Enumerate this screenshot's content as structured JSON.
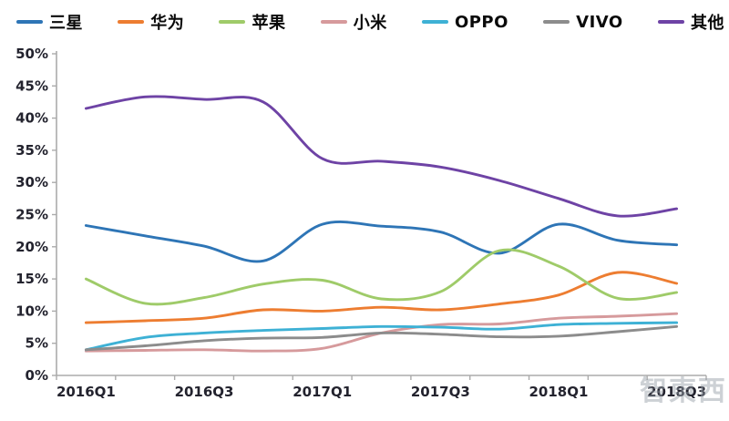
{
  "chart_data": {
    "type": "line",
    "title": "",
    "xlabel": "",
    "ylabel": "",
    "ylim": [
      0,
      50
    ],
    "ytick_step": 5,
    "yticks": [
      "0%",
      "5%",
      "10%",
      "15%",
      "20%",
      "25%",
      "30%",
      "35%",
      "40%",
      "45%",
      "50%"
    ],
    "categories": [
      "2016Q1",
      "2016Q2",
      "2016Q3",
      "2016Q4",
      "2017Q1",
      "2017Q2",
      "2017Q3",
      "2017Q4",
      "2018Q1",
      "2018Q2",
      "2018Q3"
    ],
    "xtick_labels_shown": [
      "2016Q1",
      "2016Q3",
      "2017Q1",
      "2017Q3",
      "2018Q1",
      "2018Q3"
    ],
    "xtick_label_every": 2,
    "grid": false,
    "legend_position": "top",
    "axis_color": "#ababab",
    "label_color": "#23232e",
    "series": [
      {
        "name": "samsung",
        "label": "三星",
        "color": "#2E75B6",
        "values": [
          23.3,
          21.7,
          20.1,
          17.8,
          23.5,
          23.2,
          22.3,
          19.0,
          23.5,
          21.0,
          20.3
        ]
      },
      {
        "name": "huawei",
        "label": "华为",
        "color": "#ED7D31",
        "values": [
          8.2,
          8.5,
          8.9,
          10.2,
          10.0,
          10.6,
          10.2,
          11.1,
          12.5,
          16.0,
          14.3
        ]
      },
      {
        "name": "apple",
        "label": "苹果",
        "color": "#9FCB69",
        "values": [
          15.0,
          11.2,
          12.1,
          14.2,
          14.8,
          11.9,
          13.0,
          19.4,
          17.0,
          12.0,
          12.9
        ]
      },
      {
        "name": "xiaomi",
        "label": "小米",
        "color": "#D69A9C",
        "values": [
          3.8,
          3.9,
          4.0,
          3.8,
          4.2,
          6.6,
          7.9,
          8.0,
          8.9,
          9.2,
          9.6
        ]
      },
      {
        "name": "oppo",
        "label": "OPPO",
        "color": "#3EB1D5",
        "values": [
          4.0,
          5.9,
          6.6,
          7.0,
          7.3,
          7.6,
          7.5,
          7.2,
          7.9,
          8.1,
          8.2
        ]
      },
      {
        "name": "vivo",
        "label": "VIVO",
        "color": "#8C8C8C",
        "values": [
          4.0,
          4.6,
          5.4,
          5.8,
          5.9,
          6.6,
          6.4,
          6.0,
          6.1,
          6.8,
          7.6
        ]
      },
      {
        "name": "others",
        "label": "其他",
        "color": "#6E43A5",
        "values": [
          41.5,
          43.3,
          42.9,
          42.5,
          33.7,
          33.3,
          32.4,
          30.3,
          27.5,
          24.8,
          25.9
        ]
      }
    ]
  },
  "watermark": {
    "text": "智東西"
  }
}
